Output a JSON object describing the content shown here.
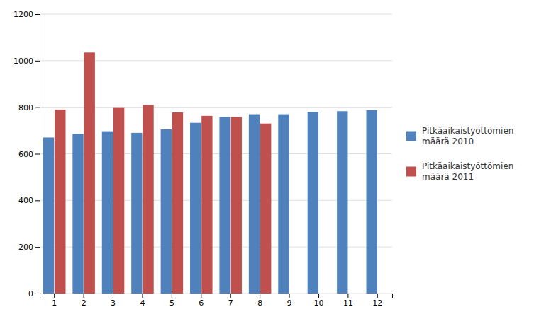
{
  "chart_data": {
    "type": "bar",
    "categories": [
      1,
      2,
      3,
      4,
      5,
      6,
      7,
      8,
      9,
      10,
      11,
      12
    ],
    "series": [
      {
        "name": "Pitkäaikaistyöttömien\nmäärä 2010",
        "color": "#4F81BD",
        "values": [
          670,
          685,
          697,
          690,
          705,
          733,
          758,
          770,
          770,
          780,
          783,
          787
        ]
      },
      {
        "name": "Pitkäaikaistyöttömien\nmäärä 2011",
        "color": "#C0504D",
        "values": [
          790,
          1035,
          800,
          810,
          778,
          763,
          758,
          730,
          null,
          null,
          null,
          null
        ]
      }
    ],
    "ylim": [
      0,
      1200
    ],
    "yticks": [
      0,
      200,
      400,
      600,
      800,
      1000,
      1200
    ],
    "grid": true,
    "legend": "right"
  }
}
